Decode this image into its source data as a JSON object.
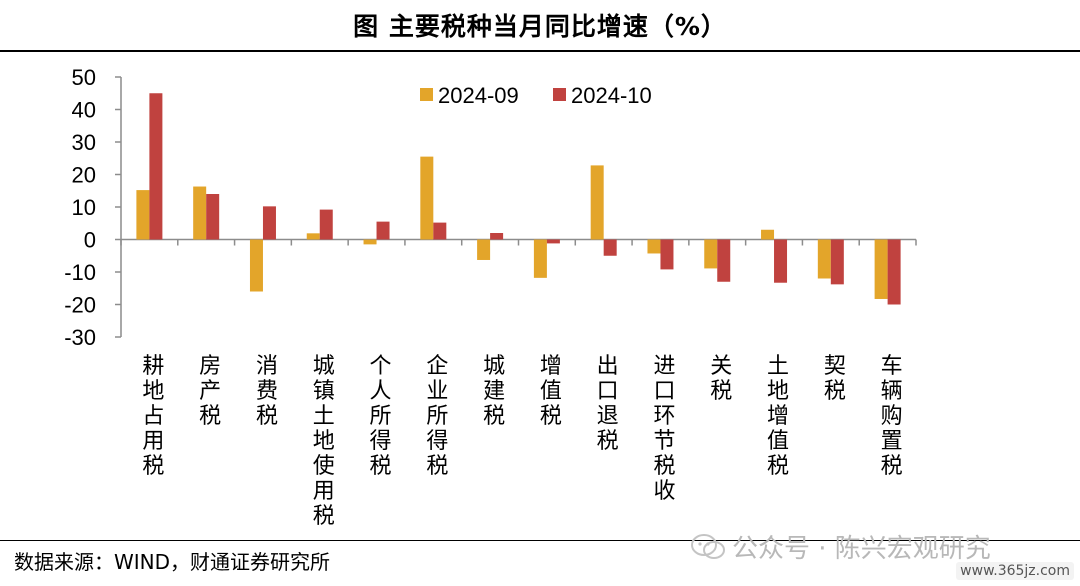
{
  "title": "图  主要税种当月同比增速（%）",
  "source": "数据来源：WIND，财通证券研究所",
  "watermark": "公众号 · 陈兴宏观研究",
  "site_mark": "www.365jz.com",
  "colors": {
    "series1": "#E3A52A",
    "series2": "#C0423F",
    "axis": "#888888"
  },
  "chart_data": {
    "type": "bar",
    "title": "主要税种当月同比增速（%）",
    "xlabel": "",
    "ylabel": "",
    "ylim": [
      -30,
      50
    ],
    "yticks": [
      50,
      40,
      30,
      20,
      10,
      0,
      -10,
      -20,
      -30
    ],
    "legend_position": "top-center",
    "grid": false,
    "categories": [
      "耕地占用税",
      "房产税",
      "消费税",
      "城镇土地使用税",
      "个人所得税",
      "企业所得税",
      "城建税",
      "增值税",
      "出口退税",
      "进口环节税收",
      "关税",
      "土地增值税",
      "契税",
      "车辆购置税"
    ],
    "series": [
      {
        "name": "2024-09",
        "color": "#E3A52A",
        "values": [
          15.2,
          16.3,
          -16.0,
          1.9,
          -1.5,
          25.5,
          -6.3,
          -11.8,
          22.8,
          -4.3,
          -8.9,
          3.0,
          -12.0,
          -18.3
        ]
      },
      {
        "name": "2024-10",
        "color": "#C0423F",
        "values": [
          45.0,
          14.0,
          10.2,
          9.2,
          5.5,
          5.2,
          2.0,
          -1.2,
          -5.0,
          -9.2,
          -13.0,
          -13.3,
          -13.8,
          -20.0
        ]
      }
    ]
  }
}
